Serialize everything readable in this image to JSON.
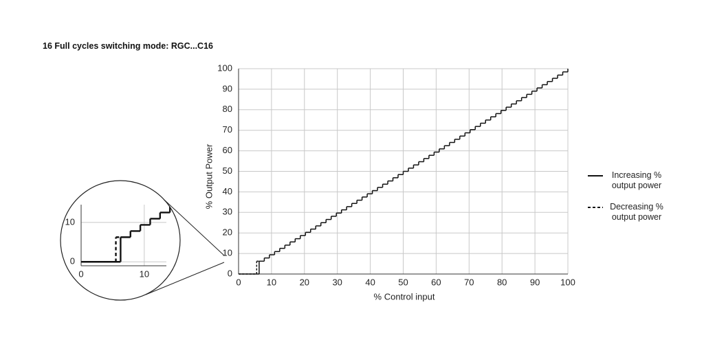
{
  "chart_data": [
    {
      "type": "line",
      "title": "16 Full cycles switching mode: RGC...C16",
      "xlabel": "% Control input",
      "ylabel": "% Output Power",
      "xlim": [
        0,
        100
      ],
      "ylim": [
        0,
        100
      ],
      "xticks": [
        0,
        10,
        20,
        30,
        40,
        50,
        60,
        70,
        80,
        90,
        100
      ],
      "yticks": [
        0,
        10,
        20,
        30,
        40,
        50,
        60,
        70,
        80,
        90,
        100
      ],
      "grid": true,
      "series": [
        {
          "name": "Increasing % output power",
          "color": "#111111",
          "dash": false,
          "x": [
            0,
            6.25,
            7.8125,
            9.375,
            10.9375,
            12.5,
            14.0625,
            15.625,
            17.1875,
            18.75,
            20.3125,
            21.875,
            23.4375,
            25,
            26.5625,
            28.125,
            29.6875,
            31.25,
            32.8125,
            34.375,
            35.9375,
            37.5,
            39.0625,
            40.625,
            42.1875,
            43.75,
            45.3125,
            46.875,
            48.4375,
            50,
            51.5625,
            53.125,
            54.6875,
            56.25,
            57.8125,
            59.375,
            60.9375,
            62.5,
            64.0625,
            65.625,
            67.1875,
            68.75,
            70.3125,
            71.875,
            73.4375,
            75,
            76.5625,
            78.125,
            79.6875,
            81.25,
            82.8125,
            84.375,
            85.9375,
            87.5,
            89.0625,
            90.625,
            92.1875,
            93.75,
            95.3125,
            96.875,
            98.4375,
            100
          ],
          "values": [
            0,
            6.25,
            7.8125,
            9.375,
            10.9375,
            12.5,
            14.0625,
            15.625,
            17.1875,
            18.75,
            20.3125,
            21.875,
            23.4375,
            25,
            26.5625,
            28.125,
            29.6875,
            31.25,
            32.8125,
            34.375,
            35.9375,
            37.5,
            39.0625,
            40.625,
            42.1875,
            43.75,
            45.3125,
            46.875,
            48.4375,
            50,
            51.5625,
            53.125,
            54.6875,
            56.25,
            57.8125,
            59.375,
            60.9375,
            62.5,
            64.0625,
            65.625,
            67.1875,
            68.75,
            70.3125,
            71.875,
            73.4375,
            75,
            76.5625,
            78.125,
            79.6875,
            81.25,
            82.8125,
            84.375,
            85.9375,
            87.5,
            89.0625,
            90.625,
            92.1875,
            93.75,
            95.3125,
            96.875,
            98.4375,
            100
          ]
        },
        {
          "name": "Decreasing % output power",
          "color": "#111111",
          "dash": true,
          "x": [
            0,
            5.5,
            6.25
          ],
          "values": [
            0,
            6.25,
            6.25
          ]
        }
      ]
    },
    {
      "type": "line",
      "xlim": [
        0,
        13.5
      ],
      "ylim": [
        -1,
        14.5
      ],
      "xticks": [
        0,
        10
      ],
      "yticks": [
        0,
        10
      ],
      "grid": true
    }
  ]
}
